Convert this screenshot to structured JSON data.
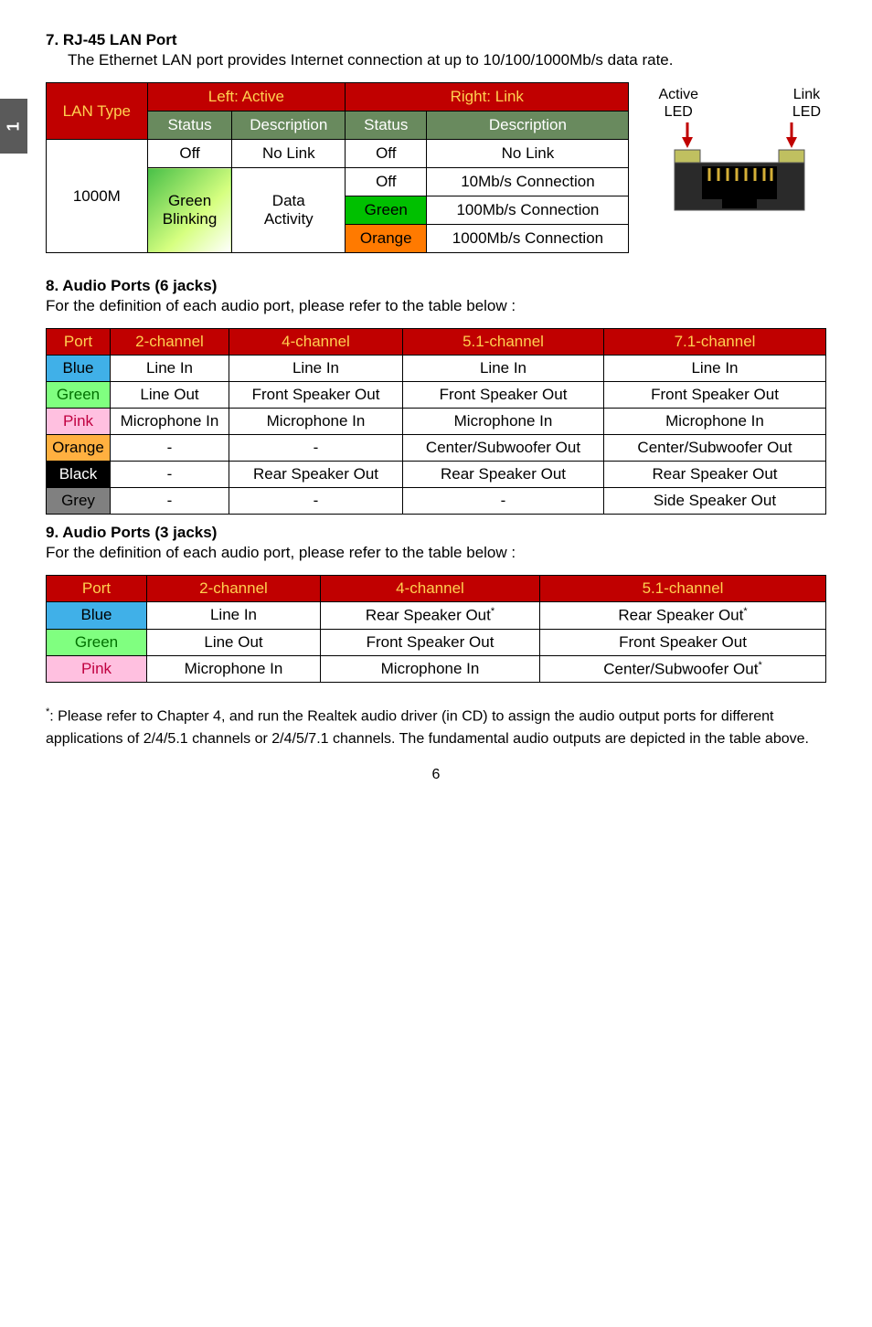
{
  "chapter_tab": "1",
  "page_number": "6",
  "sec7": {
    "title": "7. RJ-45 LAN Port",
    "desc": "The Ethernet LAN port provides Internet connection at up to 10/100/1000Mb/s data rate.",
    "diagram": {
      "active_label_1": "Active",
      "active_label_2": "LED",
      "link_label_1": "Link",
      "link_label_2": "LED",
      "arrow_color": "#c00000",
      "port_body_color": "#2a2a2a",
      "led_left": "#c0c060",
      "led_right": "#c0c060"
    },
    "table": {
      "c_lan_type": "LAN Type",
      "c_left": "Left: Active",
      "c_right": "Right: Link",
      "c_status": "Status",
      "c_desc": "Description",
      "lan_val": "1000M",
      "off": "Off",
      "no_link": "No Link",
      "green_blink": "Green Blinking",
      "data_act": "Data Activity",
      "r1_status": "Off",
      "r1_desc": "10Mb/s Connection",
      "r2_status": "Green",
      "r2_desc": "100Mb/s Connection",
      "r3_status": "Orange",
      "r3_desc": "1000Mb/s Connection"
    }
  },
  "sec8": {
    "title": "8. Audio Ports (6 jacks)",
    "desc": "For the definition of each audio port, please refer to the table below :",
    "headers": [
      "Port",
      "2-channel",
      "4-channel",
      "5.1-channel",
      "7.1-channel"
    ],
    "rows": [
      {
        "port": "Blue",
        "class": "blue-cell",
        "cells": [
          "Line In",
          "Line In",
          "Line In",
          "Line In"
        ]
      },
      {
        "port": "Green",
        "class": "lgreen-cell lbl",
        "cells": [
          "Line Out",
          "Front Speaker Out",
          "Front Speaker Out",
          "Front Speaker Out"
        ]
      },
      {
        "port": "Pink",
        "class": "pink-cell lbl",
        "cells": [
          "Microphone In",
          "Microphone In",
          "Microphone In",
          "Microphone In"
        ]
      },
      {
        "port": "Orange",
        "class": "porange-cell",
        "cells": [
          "-",
          "-",
          "Center/Subwoofer Out",
          "Center/Subwoofer Out"
        ]
      },
      {
        "port": "Black",
        "class": "black-cell",
        "cells": [
          "-",
          "Rear Speaker Out",
          "Rear Speaker Out",
          "Rear Speaker Out"
        ]
      },
      {
        "port": "Grey",
        "class": "grey-cell",
        "cells": [
          "-",
          "-",
          "-",
          "Side Speaker Out"
        ]
      }
    ],
    "col_widths": [
      "70px",
      "130px",
      "190px",
      "220px",
      "auto"
    ]
  },
  "sec9": {
    "title": "9. Audio Ports (3 jacks)",
    "desc": "For the definition of each audio port, please refer to the table below :",
    "headers": [
      "Port",
      "2-channel",
      "4-channel",
      "5.1-channel"
    ],
    "rows": [
      {
        "port": "Blue",
        "class": "blue-cell",
        "cells": [
          "Line In",
          "Rear Speaker Out*",
          "Rear Speaker Out*"
        ]
      },
      {
        "port": "Green",
        "class": "lgreen-cell lbl",
        "cells": [
          "Line Out",
          "Front Speaker Out",
          "Front Speaker Out"
        ]
      },
      {
        "port": "Pink",
        "class": "pink-cell lbl",
        "cells": [
          "Microphone In",
          "Microphone In",
          "Center/Subwoofer Out*"
        ]
      }
    ],
    "col_widths": [
      "110px",
      "190px",
      "240px",
      "auto"
    ]
  },
  "footnote": "*: Please refer to Chapter 4, and run the Realtek audio driver (in CD) to assign the audio output ports for different applications of 2/4/5.1 channels or 2/4/5/7.1 channels. The fundamental audio outputs are depicted in the table above."
}
